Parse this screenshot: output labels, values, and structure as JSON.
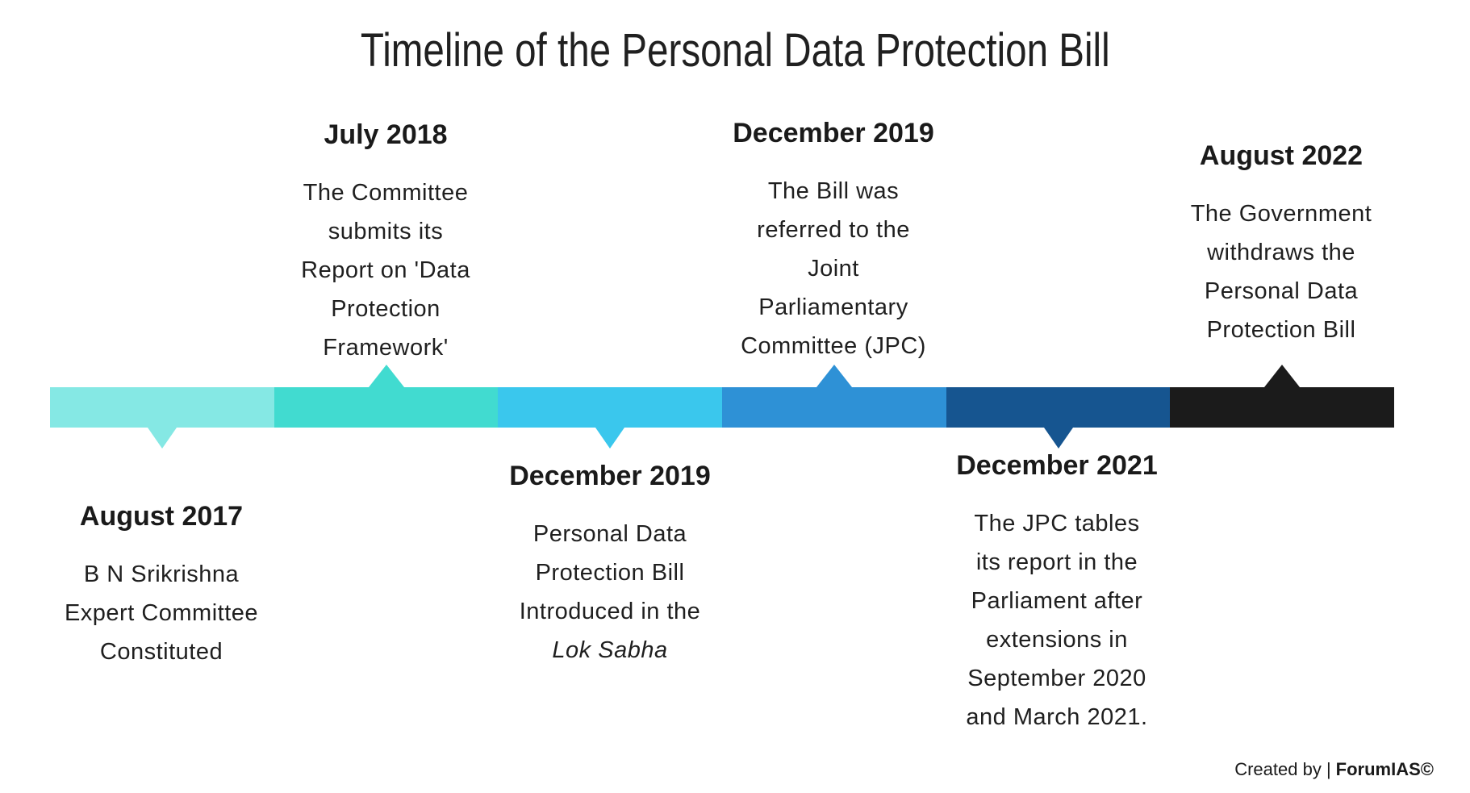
{
  "title": "Timeline of the Personal Data Protection Bill",
  "theme": {
    "background": "#FFFFFF",
    "text_color": "#1F1F1F",
    "heading_color": "#1A1A1A"
  },
  "timeline": {
    "segment_colors": [
      "#85E8E4",
      "#41DBD0",
      "#3AC7ED",
      "#2E91D6",
      "#165590",
      "#1B1B1B"
    ]
  },
  "events": [
    {
      "date": "August 2017",
      "side": "below",
      "color": "#85E8E4",
      "lines": [
        {
          "text": "B N Srikrishna"
        },
        {
          "text": "Expert Committee"
        },
        {
          "text": "Constituted"
        }
      ]
    },
    {
      "date": "July 2018",
      "side": "above",
      "color": "#41DBD0",
      "lines": [
        {
          "text": "The Committee"
        },
        {
          "text": "submits its"
        },
        {
          "text": "Report on 'Data"
        },
        {
          "text": "Protection"
        },
        {
          "text": "Framework'"
        }
      ]
    },
    {
      "date": "December 2019",
      "side": "below",
      "color": "#3AC7ED",
      "lines": [
        {
          "text": "Personal Data"
        },
        {
          "text": "Protection Bill"
        },
        {
          "text": "Introduced in the"
        },
        {
          "text": "Lok Sabha",
          "italic": true
        }
      ]
    },
    {
      "date": "December 2019",
      "side": "above",
      "color": "#2E91D6",
      "lines": [
        {
          "text": "The Bill was"
        },
        {
          "text": "referred to the"
        },
        {
          "text": "Joint"
        },
        {
          "text": "Parliamentary"
        },
        {
          "text": "Committee (JPC)"
        }
      ]
    },
    {
      "date": "December 2021",
      "side": "below",
      "color": "#165590",
      "lines": [
        {
          "text": "The JPC tables"
        },
        {
          "text": "its report in the"
        },
        {
          "text": "Parliament after"
        },
        {
          "text": "extensions in"
        },
        {
          "text": "September 2020"
        },
        {
          "text": "and March 2021."
        }
      ]
    },
    {
      "date": "August 2022",
      "side": "above",
      "color": "#1B1B1B",
      "lines": [
        {
          "text": "The Government"
        },
        {
          "text": "withdraws the"
        },
        {
          "text": "Personal Data"
        },
        {
          "text": "Protection Bill"
        }
      ]
    }
  ],
  "footer": {
    "created_by": "Created by |",
    "brand": "ForumIAS©"
  }
}
